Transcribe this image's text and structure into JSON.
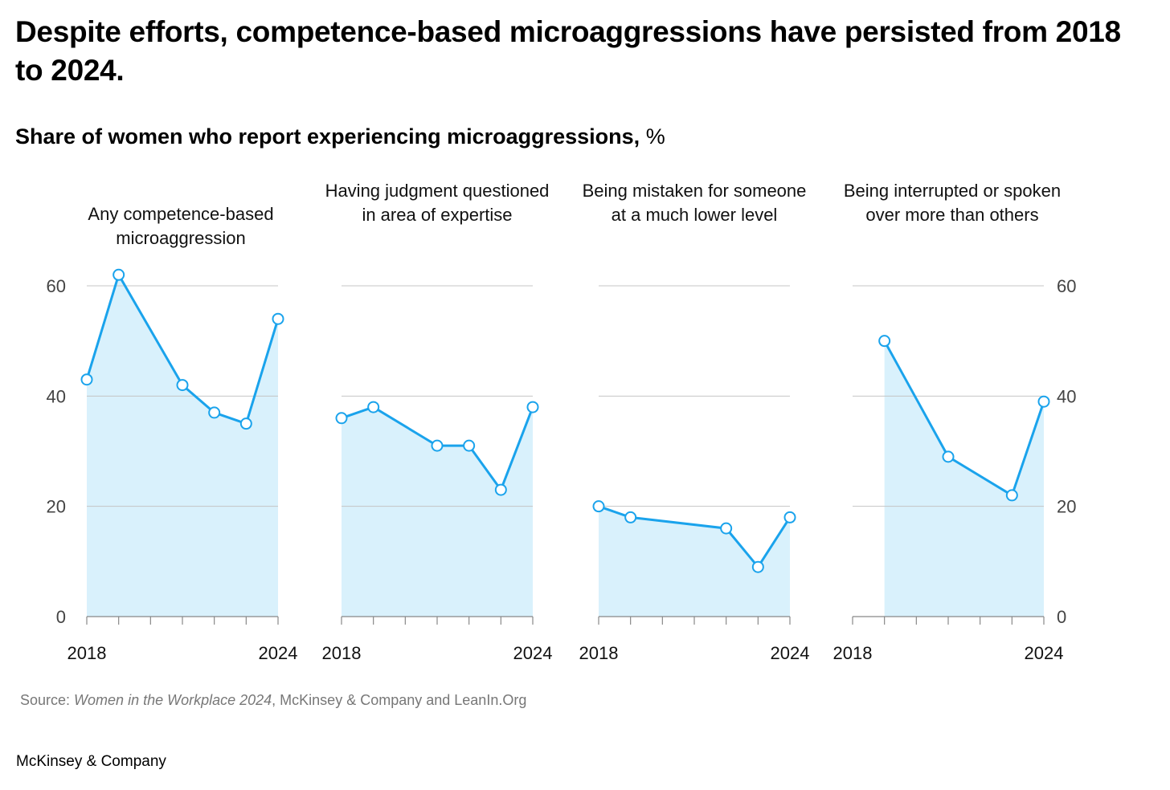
{
  "title": "Despite efforts, competence-based microaggressions have persisted from 2018 to 2024.",
  "subtitle": "Share of women who report experiencing microaggressions,",
  "subtitle_unit": "%",
  "source": {
    "prefix": "Source: ",
    "italic": "Women in the Workplace 2024",
    "suffix": ", McKinsey & Company and LeanIn.Org"
  },
  "brand": "McKinsey & Company",
  "colors": {
    "line": "#1aa3ec",
    "fill": "#d9f1fc",
    "grid": "#c4c4c4",
    "axis": "#888888"
  },
  "chart_data": [
    {
      "type": "area",
      "title": "Any competence-based microaggression",
      "x": [
        2018,
        2019,
        2021,
        2022,
        2023,
        2024
      ],
      "values": [
        43,
        62,
        42,
        37,
        35,
        54
      ],
      "ylim": [
        0,
        60
      ],
      "yticks": [
        "0",
        "20",
        "40",
        "60"
      ],
      "ytick_side": "left",
      "xtick_labels": [
        "2018",
        "2024"
      ]
    },
    {
      "type": "area",
      "title": "Having judgment questioned in area of expertise",
      "x": [
        2018,
        2019,
        2021,
        2022,
        2023,
        2024
      ],
      "values": [
        36,
        38,
        31,
        31,
        23,
        38
      ],
      "ylim": [
        0,
        60
      ],
      "xtick_labels": [
        "2018",
        "2024"
      ]
    },
    {
      "type": "area",
      "title": "Being mistaken for someone at a much lower level",
      "x": [
        2018,
        2019,
        2022,
        2023,
        2024
      ],
      "values": [
        20,
        18,
        16,
        9,
        18
      ],
      "ylim": [
        0,
        60
      ],
      "xtick_labels": [
        "2018",
        "2024"
      ]
    },
    {
      "type": "area",
      "title": "Being interrupted or spoken over more than others",
      "x": [
        2019,
        2021,
        2023,
        2024
      ],
      "values": [
        50,
        29,
        22,
        39
      ],
      "ylim": [
        0,
        60
      ],
      "yticks": [
        "0",
        "20",
        "40",
        "60"
      ],
      "ytick_side": "right",
      "xtick_labels": [
        "2018",
        "2024"
      ]
    }
  ]
}
